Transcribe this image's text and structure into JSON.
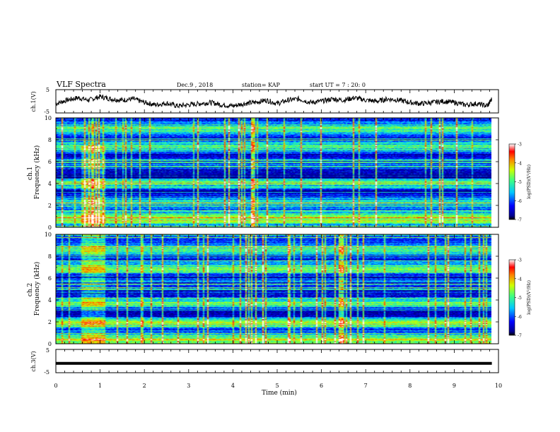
{
  "header": {
    "title": "VLF Spectra",
    "date": "Dec.9 , 2018",
    "station": "station= KAP",
    "start": "start UT = 7 : 20: 0"
  },
  "chart_data": [
    {
      "type": "line",
      "ylabel": "ch.1(V)",
      "ylim": [
        -5,
        5
      ],
      "yticks": [
        "5",
        "-5"
      ],
      "xlim": [
        0,
        10
      ],
      "x": [
        0,
        0.25,
        0.5,
        0.75,
        1,
        1.25,
        1.5,
        1.75,
        2,
        2.25,
        2.5,
        2.75,
        3,
        3.25,
        3.5,
        3.75,
        4,
        4.25,
        4.5,
        4.75,
        5,
        5.25,
        5.5,
        5.75,
        6,
        6.25,
        6.5,
        6.75,
        7,
        7.25,
        7.5,
        7.75,
        8,
        8.25,
        8.5,
        8.75,
        9,
        9.25,
        9.5,
        9.75,
        9.85
      ],
      "values": [
        -1,
        0.5,
        1.5,
        0.5,
        2,
        1,
        0.5,
        1,
        -0.5,
        -1.5,
        -0.8,
        -2,
        -1.5,
        -1,
        -0.5,
        -1.5,
        -2,
        -1,
        -0.5,
        0.5,
        -1,
        0.5,
        1,
        -0.5,
        0,
        1,
        0.5,
        1.5,
        0.5,
        0,
        1,
        0.5,
        -0.5,
        -1,
        -0.5,
        0,
        -0.5,
        -1.5,
        -1,
        -2,
        1
      ]
    },
    {
      "type": "heatmap",
      "ylabel": "ch.1\nFrequency (kHz)",
      "ylim": [
        0,
        10
      ],
      "yticks": [
        "0",
        "2",
        "4",
        "6",
        "8",
        "10"
      ],
      "xlim": [
        0,
        9.85
      ],
      "colorbar": {
        "label": "log(PSD)(V²/Hz)",
        "range": [
          -7,
          -3
        ],
        "ticks": [
          "-3",
          "-4",
          "-5",
          "-6",
          "-7"
        ]
      }
    },
    {
      "type": "heatmap",
      "ylabel": "ch.2\nFrequency (kHz)",
      "ylim": [
        0,
        10
      ],
      "yticks": [
        "0",
        "2",
        "4",
        "6",
        "8",
        "10"
      ],
      "xlim": [
        0,
        9.85
      ],
      "colorbar": {
        "label": "log(PSD)(V²/Hz)",
        "range": [
          -7,
          -3
        ],
        "ticks": [
          "-3",
          "-4",
          "-5",
          "-6",
          "-7"
        ]
      }
    },
    {
      "type": "line",
      "ylabel": "ch.3(V)",
      "ylim": [
        -5,
        5
      ],
      "yticks": [
        "5",
        "-5"
      ],
      "xlim": [
        0,
        10
      ],
      "x": [
        0,
        9.85
      ],
      "values": [
        -1,
        -1
      ]
    }
  ],
  "xaxis": {
    "label": "Time (min)",
    "ticks": [
      "0",
      "1",
      "2",
      "3",
      "4",
      "5",
      "6",
      "7",
      "8",
      "9",
      "10"
    ],
    "range": [
      0,
      10
    ]
  }
}
